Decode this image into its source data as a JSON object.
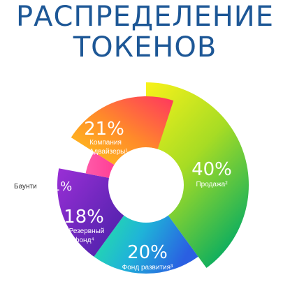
{
  "title": {
    "line1": "РАСПРЕДЕЛЕНИЕ",
    "line2": "ТОКЕНОВ"
  },
  "chart_data": {
    "type": "pie",
    "donut": true,
    "unit": "%",
    "slices": [
      {
        "label": "Продажа²",
        "value": 40,
        "value_text": "40%",
        "color_start": "#f7ee1c",
        "color_end": "#1bb35a"
      },
      {
        "label": "Фонд развития³",
        "value": 20,
        "value_text": "20%",
        "color_start": "#1ed6a6",
        "color_end": "#2f66e0"
      },
      {
        "label": "Резервный фонд⁴",
        "value": 18,
        "value_text": "18%",
        "color_start": "#7a2bd0",
        "color_end": "#4b1fa8"
      },
      {
        "label": "Баунти",
        "value": 1,
        "value_text": "1%",
        "color_start": "#ff4fa0",
        "color_end": "#ff7ac0"
      },
      {
        "label": "Компания и Адвайзеры¹",
        "value": 21,
        "value_text": "21%",
        "color_start": "#ff3d5a",
        "color_end": "#ffc21a"
      }
    ]
  }
}
